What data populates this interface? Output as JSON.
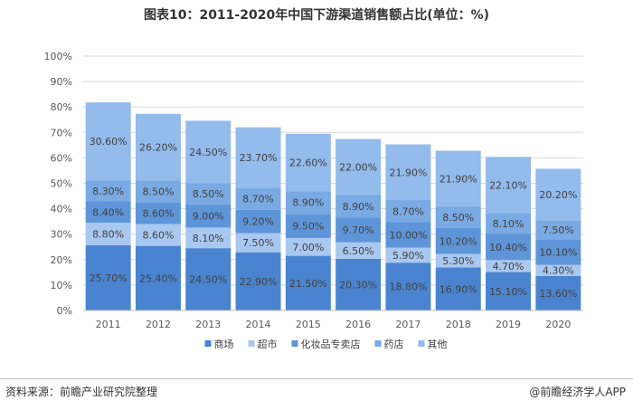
{
  "title": "图表10：2011-2020年中国下游渠道销售额占比(单位：%)",
  "footer": {
    "source": "资料来源：前瞻产业研究院整理",
    "credit": "@前瞻经济学人APP"
  },
  "chart_data": {
    "type": "bar",
    "stacked": true,
    "categories": [
      "2011",
      "2012",
      "2013",
      "2014",
      "2015",
      "2016",
      "2017",
      "2018",
      "2019",
      "2020"
    ],
    "ylim": [
      0,
      100
    ],
    "yticks": [
      "0%",
      "10%",
      "20%",
      "30%",
      "40%",
      "50%",
      "60%",
      "70%",
      "80%",
      "90%",
      "100%"
    ],
    "legend_position": "bottom",
    "series": [
      {
        "name": "商场",
        "color": "#4a84d1",
        "values": [
          25.7,
          25.4,
          24.5,
          22.9,
          21.5,
          20.3,
          18.8,
          16.9,
          15.1,
          13.6
        ],
        "labels": [
          "25.70%",
          "25.40%",
          "24.50%",
          "22.90%",
          "21.50%",
          "20.30%",
          "18.80%",
          "16.90%",
          "15.10%",
          "13.60%"
        ]
      },
      {
        "name": "超市",
        "color": "#a9c8f0",
        "values": [
          8.8,
          8.6,
          8.1,
          7.5,
          7.0,
          6.5,
          5.9,
          5.3,
          4.7,
          4.3
        ],
        "labels": [
          "8.80%",
          "8.60%",
          "8.10%",
          "7.50%",
          "7.00%",
          "6.50%",
          "5.90%",
          "5.30%",
          "4.70%",
          "4.30%"
        ]
      },
      {
        "name": "化妆品专卖店",
        "color": "#5e95d9",
        "values": [
          8.4,
          8.6,
          9.0,
          9.2,
          9.5,
          9.7,
          10.0,
          10.2,
          10.4,
          10.1
        ],
        "labels": [
          "8.40%",
          "8.60%",
          "9.00%",
          "9.20%",
          "9.50%",
          "9.70%",
          "10.00%",
          "10.20%",
          "10.40%",
          "10.10%"
        ]
      },
      {
        "name": "药店",
        "color": "#7aaae3",
        "values": [
          8.3,
          8.5,
          8.5,
          8.7,
          8.9,
          8.9,
          8.7,
          8.5,
          8.1,
          7.5
        ],
        "labels": [
          "8.30%",
          "8.50%",
          "8.50%",
          "8.70%",
          "8.90%",
          "8.90%",
          "8.70%",
          "8.50%",
          "8.10%",
          "7.50%"
        ]
      },
      {
        "name": "其他",
        "color": "#93bbeb",
        "values": [
          30.6,
          26.2,
          24.5,
          23.7,
          22.6,
          22.0,
          21.9,
          21.9,
          22.1,
          20.2
        ],
        "labels": [
          "30.60%",
          "26.20%",
          "24.50%",
          "23.70%",
          "22.60%",
          "22.00%",
          "21.90%",
          "21.90%",
          "22.10%",
          "20.20%"
        ]
      }
    ]
  }
}
